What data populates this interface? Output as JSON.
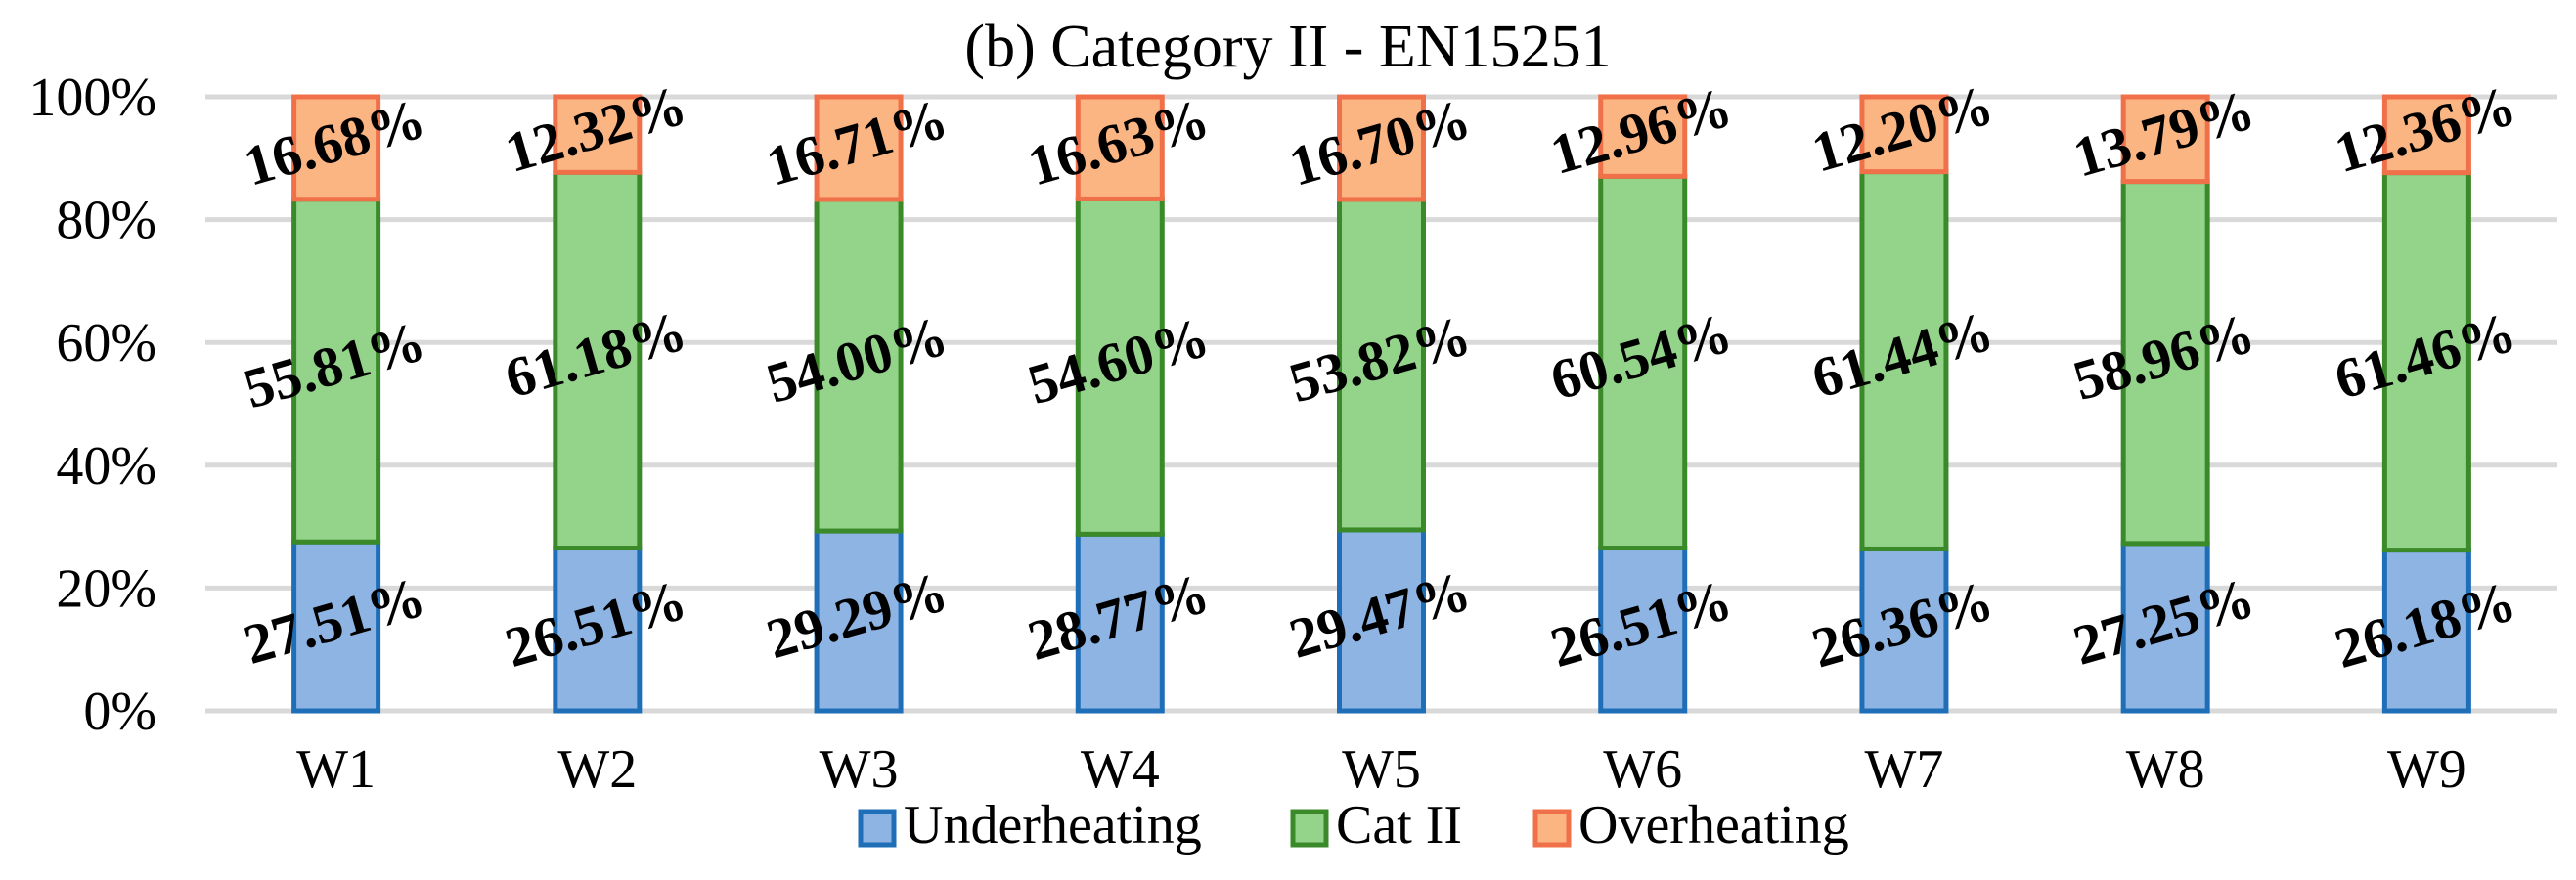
{
  "chart_data": {
    "type": "bar",
    "stacked": true,
    "title": "(b) Category II - EN15251",
    "xlabel": "",
    "ylabel": "",
    "ylim": [
      0,
      100
    ],
    "yticks": [
      0,
      20,
      40,
      60,
      80,
      100
    ],
    "ytick_labels": [
      "0%",
      "20%",
      "40%",
      "60%",
      "80%",
      "100%"
    ],
    "grid": true,
    "legend_position": "bottom",
    "categories": [
      "W1",
      "W2",
      "W3",
      "W4",
      "W5",
      "W6",
      "W7",
      "W8",
      "W9"
    ],
    "series": [
      {
        "name": "Underheating",
        "fill": "#8eb4e3",
        "stroke": "#1f6fb8",
        "values": [
          27.51,
          26.51,
          29.29,
          28.77,
          29.47,
          26.51,
          26.36,
          27.25,
          26.18
        ],
        "labels": [
          "27.51%",
          "26.51%",
          "29.29%",
          "28.77%",
          "29.47%",
          "26.51%",
          "26.36%",
          "27.25%",
          "26.18%"
        ]
      },
      {
        "name": "Cat II",
        "fill": "#93d38a",
        "stroke": "#3a8a2a",
        "values": [
          55.81,
          61.18,
          54.0,
          54.6,
          53.82,
          60.54,
          61.44,
          58.96,
          61.46
        ],
        "labels": [
          "55.81%",
          "61.18%",
          "54.00%",
          "54.60%",
          "53.82%",
          "60.54%",
          "61.44%",
          "58.96%",
          "61.46%"
        ]
      },
      {
        "name": "Overheating",
        "fill": "#fbb583",
        "stroke": "#f0704a",
        "values": [
          16.68,
          12.32,
          16.71,
          16.63,
          16.7,
          12.96,
          12.2,
          13.79,
          12.36
        ],
        "labels": [
          "16.68%",
          "12.32%",
          "16.71%",
          "16.63%",
          "16.70%",
          "12.96%",
          "12.20%",
          "13.79%",
          "12.36%"
        ]
      }
    ]
  }
}
